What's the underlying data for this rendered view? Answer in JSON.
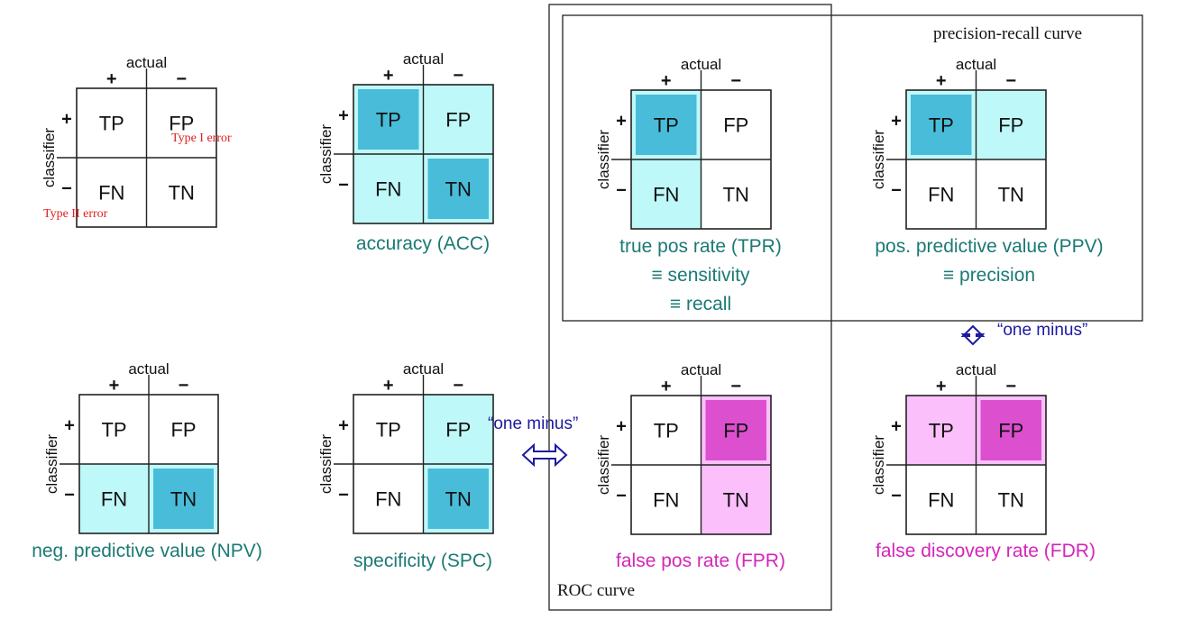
{
  "cell_labels": {
    "tp": "TP",
    "fp": "FP",
    "fn": "FN",
    "tn": "TN"
  },
  "axis_labels": {
    "actual": "actual",
    "classifier": "classifier",
    "plus": "+",
    "minus": "−"
  },
  "colors": {
    "light_cyan": "#bff8f8",
    "dark_cyan": "#49bcd9",
    "light_pink": "#fbc0fb",
    "dark_pink": "#dc4fcf",
    "teal_text": "#1b7a74",
    "magenta_text": "#d426b8",
    "arrow_blue": "#1d1aa0",
    "error_red": "#e0201e"
  },
  "matrices": [
    {
      "id": "base",
      "title": [],
      "highlight": {
        "light": [],
        "dark": []
      }
    },
    {
      "id": "accuracy",
      "title": [
        "accuracy (ACC)"
      ],
      "title_color": "teal",
      "highlight": {
        "light": [
          "FP",
          "FN"
        ],
        "dark": [
          "TP",
          "TN"
        ]
      }
    },
    {
      "id": "tpr",
      "title": [
        "true pos rate (TPR)",
        "≡ sensitivity",
        "≡ recall"
      ],
      "title_color": "teal",
      "highlight": {
        "light": [
          "FN"
        ],
        "dark": [
          "TP"
        ]
      }
    },
    {
      "id": "ppv",
      "title": [
        "pos. predictive value (PPV)",
        "≡ precision"
      ],
      "title_color": "teal",
      "highlight": {
        "light": [
          "FP"
        ],
        "dark": [
          "TP"
        ]
      }
    },
    {
      "id": "npv",
      "title": [
        "neg. predictive value (NPV)"
      ],
      "title_color": "teal",
      "highlight": {
        "light": [
          "FN"
        ],
        "dark": [
          "TN"
        ]
      }
    },
    {
      "id": "specificity",
      "title": [
        "specificity (SPC)"
      ],
      "title_color": "teal",
      "highlight": {
        "light": [
          "FP"
        ],
        "dark": [
          "TN"
        ]
      }
    },
    {
      "id": "fpr",
      "title": [
        "false pos rate (FPR)"
      ],
      "title_color": "magenta",
      "highlight": {
        "light": [
          "TN"
        ],
        "dark": [
          "FP"
        ]
      }
    },
    {
      "id": "fdr",
      "title": [
        "false discovery rate (FDR)"
      ],
      "title_color": "magenta",
      "highlight": {
        "light": [
          "TP"
        ],
        "dark": [
          "FP"
        ]
      }
    }
  ],
  "errors": {
    "type_one": "Type I error",
    "type_two": "Type II error"
  },
  "groups": {
    "roc_curve": "ROC curve",
    "precision_recall_curve": "precision-recall curve"
  },
  "relations": {
    "one_minus_vertical": "“one minus”",
    "one_minus_horizontal": "“one minus”"
  }
}
